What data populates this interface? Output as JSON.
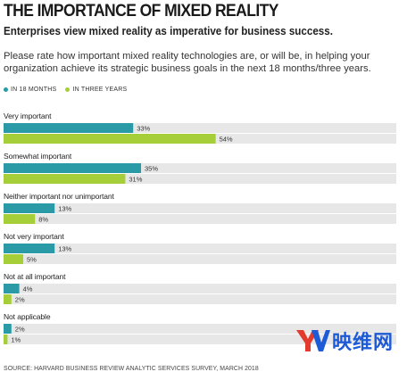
{
  "title": "THE IMPORTANCE OF MIXED REALITY",
  "subtitle": "Enterprises view mixed reality as imperative for business success.",
  "question": "Please rate how important mixed reality technologies are, or will be, in helping your organization achieve its strategic business goals in the next 18 months/three years.",
  "source": "SOURCE: HARVARD BUSINESS REVIEW ANALYTIC SERVICES SURVEY, MARCH 2018",
  "watermark": {
    "text": "映维网",
    "logo_letter": "YV",
    "color": "#1e5bd6"
  },
  "colors": {
    "series_1": "#2a9aa6",
    "series_2": "#a6ce39",
    "track": "#e7e7e7"
  },
  "chart_data": {
    "type": "bar",
    "orientation": "horizontal",
    "categories": [
      "Very important",
      "Somewhat important",
      "Neither important nor unimportant",
      "Not very important",
      "Not at all important",
      "Not applicable"
    ],
    "series": [
      {
        "name": "IN 18 MONTHS",
        "values": [
          33,
          35,
          13,
          13,
          4,
          2
        ],
        "labels": [
          "33%",
          "35%",
          "13%",
          "13%",
          "4%",
          "2%"
        ]
      },
      {
        "name": "IN THREE YEARS",
        "values": [
          54,
          31,
          8,
          5,
          2,
          1
        ],
        "labels": [
          "54%",
          "31%",
          "8%",
          "5%",
          "2%",
          "1%"
        ]
      }
    ],
    "xlim": [
      0,
      100
    ],
    "legend_position": "top-left",
    "grid": false
  }
}
